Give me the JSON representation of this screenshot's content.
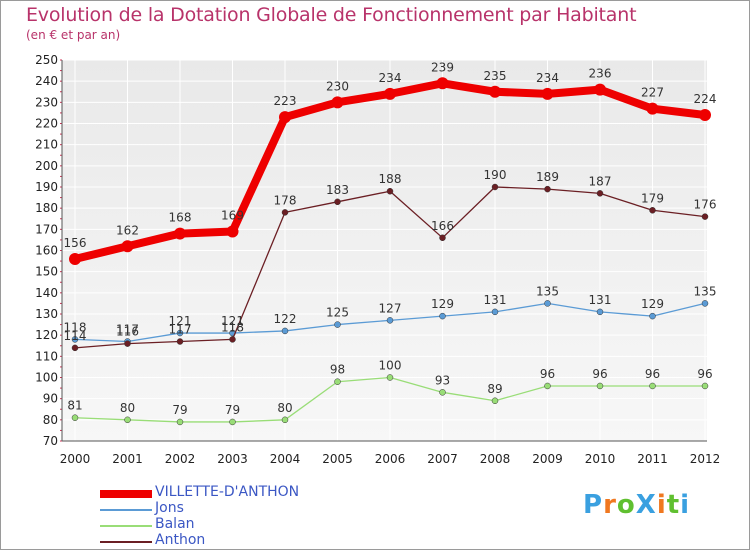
{
  "chart_data": {
    "type": "line",
    "title": "Evolution de la Dotation Globale de Fonctionnement par Habitant",
    "subtitle": "(en € et par an)",
    "xlabel": "",
    "ylabel": "",
    "ylim": [
      70,
      250
    ],
    "y_ticks": [
      70,
      80,
      90,
      100,
      110,
      120,
      130,
      140,
      150,
      160,
      170,
      180,
      190,
      200,
      210,
      220,
      230,
      240,
      250
    ],
    "categories": [
      "2000",
      "2001",
      "2002",
      "2003",
      "2004",
      "2005",
      "2006",
      "2007",
      "2008",
      "2009",
      "2010",
      "2011",
      "2012"
    ],
    "series": [
      {
        "name": "VILLETTE-D'ANTHON",
        "color": "#ee0000",
        "values": [
          156,
          162,
          168,
          169,
          223,
          230,
          234,
          239,
          235,
          234,
          236,
          227,
          224
        ]
      },
      {
        "name": "Jons",
        "color": "#5b9bd5",
        "values": [
          118,
          117,
          121,
          121,
          122,
          125,
          127,
          129,
          131,
          135,
          131,
          129,
          135
        ]
      },
      {
        "name": "Balan",
        "color": "#99dd77",
        "values": [
          81,
          80,
          79,
          79,
          80,
          98,
          100,
          93,
          89,
          96,
          96,
          96,
          96
        ]
      },
      {
        "name": "Anthon",
        "color": "#6b1f24",
        "values": [
          114,
          116,
          117,
          118,
          178,
          183,
          188,
          166,
          190,
          189,
          187,
          179,
          176
        ]
      }
    ]
  },
  "logo": {
    "text": "ProXiti",
    "letters": [
      "P",
      "r",
      "o",
      "X",
      "i",
      "t",
      "i"
    ],
    "colors": [
      "#3aa0e0",
      "#f07820",
      "#60c030",
      "#3aa0e0",
      "#f07820",
      "#60c030",
      "#3aa0e0"
    ]
  }
}
